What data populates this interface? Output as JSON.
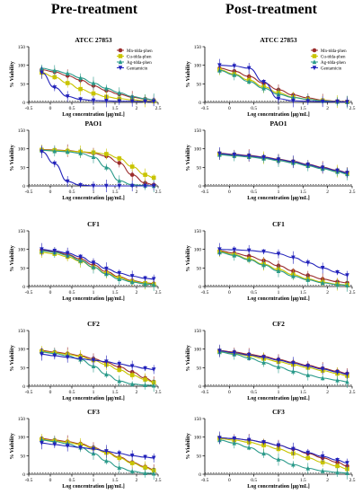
{
  "column_titles": [
    "Pre-treatment",
    "Post-treatment"
  ],
  "colors": {
    "Mn-tdda-phen": "#9b2d2d",
    "Cu-tdda-phen": "#c9c400",
    "Ag-tdda-phen": "#2a9a8a",
    "Gentamicin": "#2222bb"
  },
  "chart_data": [
    {
      "type": "line",
      "title": "ATCC 27853",
      "xlabel": "Log concentration [µg/mL]",
      "ylabel": "% Viability",
      "xlim": [
        -0.5,
        2.5
      ],
      "ylim": [
        0,
        150
      ],
      "xticks": [
        -0.5,
        0,
        0.5,
        1,
        1.5,
        2,
        2.5
      ],
      "yticks": [
        0,
        50,
        100,
        150
      ],
      "legend": "top-right",
      "x": [
        -0.2,
        0.1,
        0.4,
        0.7,
        1.0,
        1.3,
        1.6,
        1.9,
        2.2,
        2.4
      ],
      "series": [
        {
          "name": "Mn-tdda-phen",
          "values": [
            88,
            82,
            72,
            60,
            45,
            32,
            22,
            14,
            9,
            6
          ]
        },
        {
          "name": "Cu-tdda-phen",
          "values": [
            80,
            68,
            52,
            36,
            24,
            15,
            10,
            7,
            4,
            3
          ]
        },
        {
          "name": "Ag-tdda-phen",
          "values": [
            92,
            86,
            78,
            66,
            52,
            38,
            26,
            16,
            10,
            7
          ]
        },
        {
          "name": "Gentamicin",
          "values": [
            80,
            40,
            16,
            8,
            5,
            4,
            3,
            3,
            2,
            2
          ]
        }
      ]
    },
    {
      "type": "line",
      "title": "ATCC 27853",
      "xlabel": "Log concentration [µg/mL]",
      "ylabel": "% Viability",
      "xlim": [
        -0.5,
        2.5
      ],
      "ylim": [
        0,
        150
      ],
      "xticks": [
        -0.5,
        0,
        0.5,
        1,
        1.5,
        2,
        2.5
      ],
      "yticks": [
        0,
        50,
        100,
        150
      ],
      "legend": "top-right",
      "x": [
        -0.2,
        0.1,
        0.4,
        0.7,
        1.0,
        1.3,
        1.6,
        1.9,
        2.2,
        2.4
      ],
      "series": [
        {
          "name": "Mn-tdda-phen",
          "values": [
            92,
            84,
            70,
            52,
            34,
            20,
            12,
            6,
            3,
            2
          ]
        },
        {
          "name": "Cu-tdda-phen",
          "values": [
            88,
            76,
            60,
            42,
            26,
            14,
            8,
            5,
            2,
            1
          ]
        },
        {
          "name": "Ag-tdda-phen",
          "values": [
            86,
            74,
            56,
            38,
            22,
            13,
            8,
            4,
            2,
            1
          ]
        },
        {
          "name": "Gentamicin",
          "values": [
            100,
            98,
            92,
            55,
            10,
            4,
            3,
            2,
            2,
            1
          ]
        }
      ]
    },
    {
      "type": "line",
      "title": "PAO1",
      "xlabel": "Log concentration [µg/mL]",
      "ylabel": "% Viability",
      "xlim": [
        -0.5,
        2.5
      ],
      "ylim": [
        0,
        150
      ],
      "xticks": [
        -0.5,
        0,
        0.5,
        1,
        1.5,
        2,
        2.5
      ],
      "yticks": [
        0,
        50,
        100,
        150
      ],
      "x": [
        -0.2,
        0.1,
        0.4,
        0.7,
        1.0,
        1.3,
        1.6,
        1.9,
        2.2,
        2.4
      ],
      "series": [
        {
          "name": "Mn-tdda-phen",
          "values": [
            98,
            97,
            95,
            92,
            88,
            80,
            62,
            30,
            8,
            3
          ]
        },
        {
          "name": "Cu-tdda-phen",
          "values": [
            97,
            96,
            94,
            92,
            90,
            86,
            74,
            52,
            30,
            22
          ]
        },
        {
          "name": "Ag-tdda-phen",
          "values": [
            96,
            94,
            92,
            88,
            78,
            50,
            14,
            3,
            1,
            0
          ]
        },
        {
          "name": "Gentamicin",
          "values": [
            92,
            60,
            12,
            2,
            0,
            0,
            0,
            0,
            0,
            0
          ]
        }
      ]
    },
    {
      "type": "line",
      "title": "PAO1",
      "xlabel": "Log concentration [µg/mL]",
      "ylabel": "% Viability",
      "xlim": [
        -0.5,
        2.5
      ],
      "ylim": [
        0,
        150
      ],
      "xticks": [
        -0.5,
        0,
        0.5,
        1,
        1.5,
        2,
        2.5
      ],
      "yticks": [
        0,
        50,
        100,
        150
      ],
      "x": [
        -0.2,
        0.1,
        0.4,
        0.7,
        1.0,
        1.3,
        1.6,
        1.9,
        2.2,
        2.4
      ],
      "series": [
        {
          "name": "Mn-tdda-phen",
          "values": [
            88,
            85,
            82,
            78,
            72,
            66,
            58,
            50,
            42,
            36
          ]
        },
        {
          "name": "Cu-tdda-phen",
          "values": [
            86,
            83,
            80,
            76,
            70,
            64,
            56,
            48,
            40,
            34
          ]
        },
        {
          "name": "Ag-tdda-phen",
          "values": [
            84,
            81,
            78,
            74,
            68,
            62,
            54,
            46,
            38,
            32
          ]
        },
        {
          "name": "Gentamicin",
          "values": [
            87,
            84,
            81,
            77,
            71,
            65,
            57,
            49,
            41,
            35
          ]
        }
      ]
    },
    {
      "type": "line",
      "title": "CF1",
      "xlabel": "Log concentration [µg/mL]",
      "ylabel": "% Viability",
      "xlim": [
        -0.5,
        2.5
      ],
      "ylim": [
        0,
        150
      ],
      "xticks": [
        -0.5,
        0,
        0.5,
        1,
        1.5,
        2,
        2.5
      ],
      "yticks": [
        0,
        50,
        100,
        150
      ],
      "x": [
        -0.2,
        0.1,
        0.4,
        0.7,
        1.0,
        1.3,
        1.6,
        1.9,
        2.2,
        2.4
      ],
      "series": [
        {
          "name": "Mn-tdda-phen",
          "values": [
            98,
            94,
            86,
            74,
            58,
            40,
            26,
            16,
            10,
            8
          ]
        },
        {
          "name": "Cu-tdda-phen",
          "values": [
            92,
            88,
            80,
            68,
            52,
            36,
            24,
            14,
            9,
            6
          ]
        },
        {
          "name": "Ag-tdda-phen",
          "values": [
            96,
            92,
            84,
            70,
            52,
            34,
            20,
            12,
            7,
            5
          ]
        },
        {
          "name": "Gentamicin",
          "values": [
            100,
            96,
            90,
            80,
            64,
            48,
            36,
            28,
            22,
            20
          ]
        }
      ]
    },
    {
      "type": "line",
      "title": "CF1",
      "xlabel": "Log concentration [µg/mL]",
      "ylabel": "% Viability",
      "xlim": [
        -0.5,
        2.5
      ],
      "ylim": [
        0,
        150
      ],
      "xticks": [
        -0.5,
        0,
        0.5,
        1,
        1.5,
        2,
        2.5
      ],
      "yticks": [
        0,
        50,
        100,
        150
      ],
      "x": [
        -0.2,
        0.1,
        0.4,
        0.7,
        1.0,
        1.3,
        1.6,
        1.9,
        2.2,
        2.4
      ],
      "series": [
        {
          "name": "Mn-tdda-phen",
          "values": [
            96,
            90,
            82,
            70,
            56,
            42,
            30,
            20,
            13,
            10
          ]
        },
        {
          "name": "Cu-tdda-phen",
          "values": [
            94,
            86,
            74,
            60,
            46,
            32,
            20,
            12,
            6,
            4
          ]
        },
        {
          "name": "Ag-tdda-phen",
          "values": [
            92,
            84,
            72,
            58,
            42,
            28,
            18,
            10,
            5,
            3
          ]
        },
        {
          "name": "Gentamicin",
          "values": [
            100,
            99,
            97,
            94,
            88,
            78,
            64,
            50,
            38,
            30
          ]
        }
      ]
    },
    {
      "type": "line",
      "title": "CF2",
      "xlabel": "Log concentration [µg/mL]",
      "ylabel": "% Viability",
      "xlim": [
        -0.5,
        2.5
      ],
      "ylim": [
        0,
        150
      ],
      "xticks": [
        -0.5,
        0,
        0.5,
        1,
        1.5,
        2,
        2.5
      ],
      "yticks": [
        0,
        50,
        100,
        150
      ],
      "x": [
        -0.2,
        0.1,
        0.4,
        0.7,
        1.0,
        1.3,
        1.6,
        1.9,
        2.2,
        2.4
      ],
      "series": [
        {
          "name": "Mn-tdda-phen",
          "values": [
            96,
            92,
            88,
            82,
            74,
            64,
            52,
            38,
            22,
            12
          ]
        },
        {
          "name": "Cu-tdda-phen",
          "values": [
            94,
            90,
            86,
            80,
            70,
            58,
            44,
            30,
            18,
            10
          ]
        },
        {
          "name": "Ag-tdda-phen",
          "values": [
            92,
            88,
            82,
            72,
            54,
            32,
            14,
            6,
            3,
            2
          ]
        },
        {
          "name": "Gentamicin",
          "values": [
            86,
            82,
            78,
            74,
            70,
            66,
            60,
            54,
            48,
            45
          ]
        }
      ]
    },
    {
      "type": "line",
      "title": "CF2",
      "xlabel": "Log concentration [µg/mL]",
      "ylabel": "% Viability",
      "xlim": [
        -0.5,
        2.5
      ],
      "ylim": [
        0,
        150
      ],
      "xticks": [
        -0.5,
        0,
        0.5,
        1,
        1.5,
        2,
        2.5
      ],
      "yticks": [
        0,
        50,
        100,
        150
      ],
      "x": [
        -0.2,
        0.1,
        0.4,
        0.7,
        1.0,
        1.3,
        1.6,
        1.9,
        2.2,
        2.4
      ],
      "series": [
        {
          "name": "Mn-tdda-phen",
          "values": [
            96,
            92,
            86,
            80,
            72,
            64,
            56,
            48,
            40,
            34
          ]
        },
        {
          "name": "Cu-tdda-phen",
          "values": [
            94,
            88,
            82,
            74,
            66,
            58,
            50,
            42,
            34,
            28
          ]
        },
        {
          "name": "Ag-tdda-phen",
          "values": [
            92,
            86,
            76,
            64,
            52,
            40,
            30,
            22,
            16,
            12
          ]
        },
        {
          "name": "Gentamicin",
          "values": [
            95,
            90,
            84,
            78,
            70,
            62,
            54,
            46,
            38,
            32
          ]
        }
      ]
    },
    {
      "type": "line",
      "title": "CF3",
      "xlabel": "Log concentration [µg/mL]",
      "ylabel": "% Viability",
      "xlim": [
        -0.5,
        2.5
      ],
      "ylim": [
        0,
        150
      ],
      "xticks": [
        -0.5,
        0,
        0.5,
        1,
        1.5,
        2,
        2.5
      ],
      "yticks": [
        0,
        50,
        100,
        150
      ],
      "x": [
        -0.2,
        0.1,
        0.4,
        0.7,
        1.0,
        1.3,
        1.6,
        1.9,
        2.2,
        2.4
      ],
      "series": [
        {
          "name": "Mn-tdda-phen",
          "values": [
            96,
            92,
            88,
            82,
            72,
            60,
            46,
            32,
            20,
            12
          ]
        },
        {
          "name": "Cu-tdda-phen",
          "values": [
            94,
            90,
            86,
            80,
            70,
            58,
            44,
            30,
            18,
            10
          ]
        },
        {
          "name": "Ag-tdda-phen",
          "values": [
            92,
            88,
            82,
            72,
            56,
            36,
            18,
            8,
            3,
            2
          ]
        },
        {
          "name": "Gentamicin",
          "values": [
            84,
            80,
            76,
            72,
            68,
            62,
            56,
            50,
            46,
            44
          ]
        }
      ]
    },
    {
      "type": "line",
      "title": "CF3",
      "xlabel": "Log concentration [µg/mL]",
      "ylabel": "% Viability",
      "xlim": [
        -0.5,
        2.5
      ],
      "ylim": [
        0,
        150
      ],
      "xticks": [
        -0.5,
        0,
        0.5,
        1,
        1.5,
        2,
        2.5
      ],
      "yticks": [
        0,
        50,
        100,
        150
      ],
      "x": [
        -0.2,
        0.1,
        0.4,
        0.7,
        1.0,
        1.3,
        1.6,
        1.9,
        2.2,
        2.4
      ],
      "series": [
        {
          "name": "Mn-tdda-phen",
          "values": [
            98,
            96,
            92,
            86,
            78,
            68,
            56,
            44,
            32,
            22
          ]
        },
        {
          "name": "Cu-tdda-phen",
          "values": [
            96,
            92,
            86,
            78,
            68,
            56,
            44,
            32,
            22,
            14
          ]
        },
        {
          "name": "Ag-tdda-phen",
          "values": [
            92,
            84,
            72,
            56,
            40,
            26,
            16,
            9,
            5,
            3
          ]
        },
        {
          "name": "Gentamicin",
          "values": [
            98,
            96,
            92,
            86,
            78,
            68,
            58,
            48,
            38,
            30
          ]
        }
      ]
    }
  ]
}
